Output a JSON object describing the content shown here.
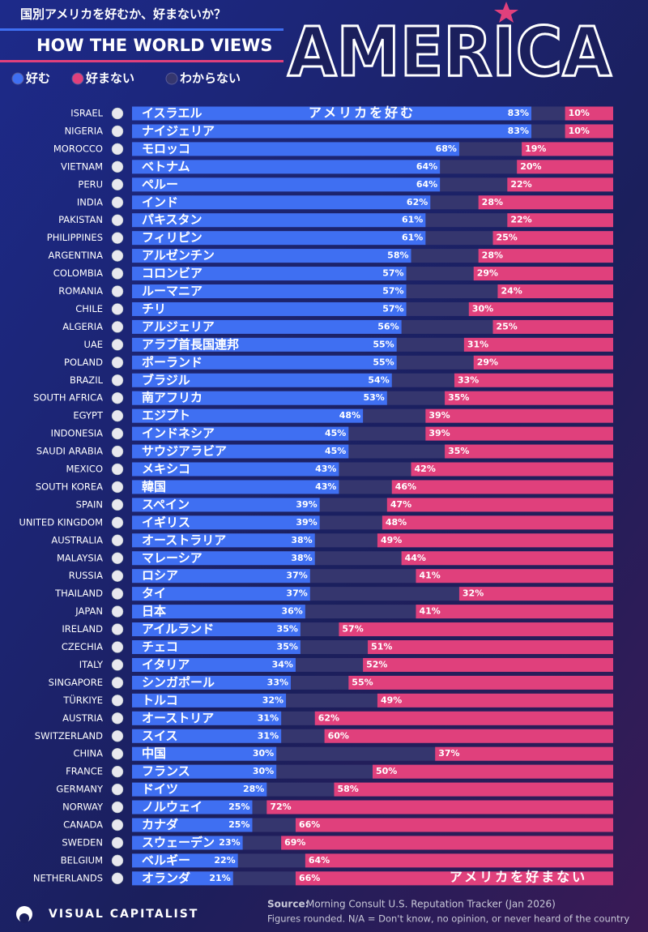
{
  "chart_data": {
    "type": "diverging-stacked-bar",
    "subtitle": "国別アメリカを好むか、好まないか？",
    "title_small": "HOW THE WORLD VIEWS",
    "title": "AMERICA",
    "categories": [
      "ISRAEL",
      "NIGERIA",
      "MOROCCO",
      "VIETNAM",
      "PERU",
      "INDIA",
      "PAKISTAN",
      "PHILIPPINES",
      "ARGENTINA",
      "COLOMBIA",
      "ROMANIA",
      "CHILE",
      "ALGERIA",
      "UAE",
      "POLAND",
      "BRAZIL",
      "SOUTH AFRICA",
      "EGYPT",
      "INDONESIA",
      "SAUDI ARABIA",
      "MEXICO",
      "SOUTH KOREA",
      "SPAIN",
      "UNITED KINGDOM",
      "AUSTRALIA",
      "MALAYSIA",
      "RUSSIA",
      "THAILAND",
      "JAPAN",
      "IRELAND",
      "CZECHIA",
      "ITALY",
      "SINGAPORE",
      "TÜRKIYE",
      "AUSTRIA",
      "SWITZERLAND",
      "CHINA",
      "FRANCE",
      "GERMANY",
      "NORWAY",
      "CANADA",
      "SWEDEN",
      "BELGIUM",
      "NETHERLANDS"
    ],
    "category_labels_ja": [
      "イスラエル",
      "ナイジェリア",
      "モロッコ",
      "ベトナム",
      "ペルー",
      "インド",
      "パキスタン",
      "フィリピン",
      "アルゼンチン",
      "コロンビア",
      "ルーマニア",
      "チリ",
      "アルジェリア",
      "アラブ首長国連邦",
      "ポーランド",
      "ブラジル",
      "南アフリカ",
      "エジプト",
      "インドネシア",
      "サウジアラビア",
      "メキシコ",
      "韓国",
      "スペイン",
      "イギリス",
      "オーストラリア",
      "マレーシア",
      "ロシア",
      "タイ",
      "日本",
      "アイルランド",
      "チェコ",
      "イタリア",
      "シンガポール",
      "トルコ",
      "オーストリア",
      "スイス",
      "中国",
      "フランス",
      "ドイツ",
      "ノルウェイ",
      "カナダ",
      "スウェーデン",
      "ベルギー",
      "オランダ"
    ],
    "series": [
      {
        "name": "好む",
        "color": "#3f6ff2",
        "values": [
          83,
          83,
          68,
          64,
          64,
          62,
          61,
          61,
          58,
          57,
          57,
          57,
          56,
          55,
          55,
          54,
          53,
          48,
          45,
          45,
          43,
          43,
          39,
          39,
          38,
          38,
          37,
          37,
          36,
          35,
          35,
          34,
          33,
          32,
          31,
          31,
          30,
          30,
          28,
          25,
          25,
          23,
          22,
          21
        ],
        "value_labels": [
          "83%",
          "83%",
          "68%",
          "64%",
          "64%",
          "62%",
          "61%",
          "61%",
          "58%",
          "57%",
          "57%",
          "57%",
          "56%",
          "55%",
          "55%",
          "54%",
          "53%",
          "48%",
          "45%",
          "45%",
          "43%",
          "43%",
          "39%",
          "39%",
          "38%",
          "38%",
          "37%",
          "37%",
          "36%",
          "35%",
          "35%",
          "34%",
          "33%",
          "32%",
          "31%",
          "31%",
          "30%",
          "30%",
          "28%",
          "25%",
          "25%",
          "23%",
          "22%",
          "21%"
        ]
      },
      {
        "name": "好まない",
        "color": "#e0407c",
        "values": [
          10,
          10,
          19,
          20,
          22,
          28,
          22,
          25,
          28,
          29,
          24,
          30,
          25,
          31,
          29,
          33,
          35,
          39,
          39,
          35,
          42,
          46,
          47,
          48,
          49,
          44,
          41,
          32,
          41,
          57,
          51,
          52,
          55,
          49,
          62,
          60,
          37,
          50,
          58,
          72,
          66,
          69,
          64,
          66
        ],
        "value_labels": [
          "10%",
          "10%",
          "19%",
          "20%",
          "22%",
          "28%",
          "22%",
          "25%",
          "28%",
          "29%",
          "24%",
          "30%",
          "25%",
          "31%",
          "29%",
          "33%",
          "35%",
          "39%",
          "39%",
          "35%",
          "42%",
          "46%",
          "47%",
          "48%",
          "49%",
          "44%",
          "41%",
          "32%",
          "41%",
          "57%",
          "51%",
          "52%",
          "55%",
          "49%",
          "62%",
          "60%",
          "37%",
          "50%",
          "58%",
          "72%",
          "66%",
          "69%",
          "64%",
          "66%"
        ]
      }
    ],
    "no_opinion_label": "わからない",
    "no_opinion_color": "#35366e",
    "xlim": [
      0,
      100
    ],
    "annotations": [
      "アメリカを好む",
      "アメリカを好まない"
    ],
    "brand": "VISUAL CAPITALIST",
    "source_label": "Source:",
    "source": "Morning Consult U.S. Reputation Tracker (Jan 2026)",
    "note": "Figures rounded. N/A = Don't know, no opinion, or never heard of the country"
  }
}
